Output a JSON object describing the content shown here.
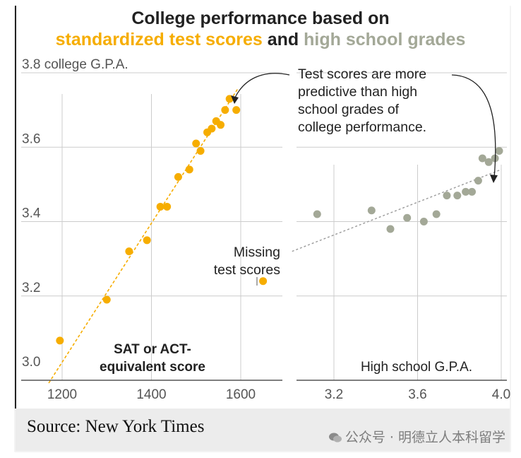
{
  "title": {
    "line1": "College performance based on",
    "line2_part1": "standardized test scores",
    "line2_part2": "and",
    "line2_part3": "high school grades"
  },
  "colors": {
    "sat": "#f6ad00",
    "hs": "#a3a897",
    "grid": "#cccccc",
    "trend_hs": "#9a9a9a",
    "text": "#222222",
    "tick": "#555555"
  },
  "annotations": {
    "callout": [
      "Test scores are more",
      "predictive than high",
      "school grades of",
      "college performance."
    ],
    "missing": [
      "Missing",
      "test scores"
    ],
    "sat_label": [
      "SAT or ACT-",
      "equivalent score"
    ],
    "hs_label": "High school G.P.A."
  },
  "chart_data": [
    {
      "type": "scatter",
      "title": "standardized test scores",
      "xlabel": "SAT or ACT-equivalent score",
      "ylabel": "college G.P.A.",
      "xlim": [
        1160,
        1690
      ],
      "ylim": [
        3.0,
        3.8
      ],
      "xticks": [
        1200,
        1400,
        1600
      ],
      "yticks": [
        3.0,
        3.2,
        3.4,
        3.6,
        3.8
      ],
      "ytick_labels": [
        "3.0",
        "3.2",
        "3.4",
        "3.6",
        "3.8 college G.P.A."
      ],
      "series": [
        {
          "name": "SAT",
          "x": [
            1195,
            1300,
            1350,
            1390,
            1420,
            1435,
            1460,
            1485,
            1500,
            1510,
            1525,
            1535,
            1545,
            1555,
            1565,
            1575,
            1590
          ],
          "y": [
            3.08,
            3.19,
            3.32,
            3.35,
            3.44,
            3.44,
            3.52,
            3.54,
            3.61,
            3.59,
            3.64,
            3.65,
            3.67,
            3.66,
            3.7,
            3.73,
            3.7
          ]
        }
      ],
      "missing_point": {
        "label": "Missing test scores",
        "x": 1650,
        "y": 3.24
      },
      "trend_line": {
        "x": [
          1170,
          1595
        ],
        "y": [
          3.0,
          3.76
        ]
      }
    },
    {
      "type": "scatter",
      "title": "high school grades",
      "xlabel": "High school G.P.A.",
      "xlim": [
        3.0,
        4.0
      ],
      "ylim": [
        3.0,
        3.8
      ],
      "xticks": [
        3.2,
        3.6,
        4.0
      ],
      "xtick_labels": [
        "3.2",
        "3.6",
        "4.0"
      ],
      "series": [
        {
          "name": "High school G.P.A.",
          "x": [
            3.12,
            3.38,
            3.47,
            3.55,
            3.63,
            3.69,
            3.74,
            3.79,
            3.83,
            3.86,
            3.89,
            3.91,
            3.94,
            3.97,
            3.99
          ],
          "y": [
            3.42,
            3.43,
            3.38,
            3.41,
            3.4,
            3.42,
            3.47,
            3.47,
            3.48,
            3.48,
            3.51,
            3.57,
            3.56,
            3.57,
            3.59
          ]
        }
      ],
      "trend_line": {
        "x": [
          3.0,
          4.0
        ],
        "y": [
          3.32,
          3.54
        ]
      }
    }
  ],
  "footer": {
    "source": "Source: New York Times",
    "watermark": "公众号 · 明德立人本科留学"
  }
}
